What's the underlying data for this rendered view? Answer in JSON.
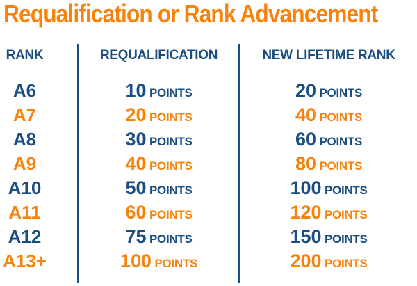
{
  "title": "Requalification or Rank Advancement",
  "colors": {
    "accent_orange": "#F8820B",
    "navy_blue": "#1B4E80",
    "background": "#FFFFFF"
  },
  "table": {
    "headers": [
      "RANK",
      "REQUALIFICATION",
      "NEW LIFETIME RANK"
    ],
    "points_label": "POINTS",
    "rows": [
      {
        "rank": "A6",
        "requalification": "10",
        "new_lifetime": "20",
        "color": "navy"
      },
      {
        "rank": "A7",
        "requalification": "20",
        "new_lifetime": "40",
        "color": "orange"
      },
      {
        "rank": "A8",
        "requalification": "30",
        "new_lifetime": "60",
        "color": "navy"
      },
      {
        "rank": "A9",
        "requalification": "40",
        "new_lifetime": "80",
        "color": "orange"
      },
      {
        "rank": "A10",
        "requalification": "50",
        "new_lifetime": "100",
        "color": "navy"
      },
      {
        "rank": "A11",
        "requalification": "60",
        "new_lifetime": "120",
        "color": "orange"
      },
      {
        "rank": "A12",
        "requalification": "75",
        "new_lifetime": "150",
        "color": "navy"
      },
      {
        "rank": "A13+",
        "requalification": "100",
        "new_lifetime": "200",
        "color": "orange"
      }
    ]
  },
  "chart_data": {
    "type": "table",
    "title": "Requalification or Rank Advancement",
    "columns": [
      "RANK",
      "REQUALIFICATION",
      "NEW LIFETIME RANK"
    ],
    "rows": [
      [
        "A6",
        "10 POINTS",
        "20 POINTS"
      ],
      [
        "A7",
        "20 POINTS",
        "40 POINTS"
      ],
      [
        "A8",
        "30 POINTS",
        "60 POINTS"
      ],
      [
        "A9",
        "40 POINTS",
        "80 POINTS"
      ],
      [
        "A10",
        "50 POINTS",
        "100 POINTS"
      ],
      [
        "A11",
        "60 POINTS",
        "120 POINTS"
      ],
      [
        "A12",
        "75 POINTS",
        "150 POINTS"
      ],
      [
        "A13+",
        "100 POINTS",
        "200 POINTS"
      ]
    ]
  }
}
